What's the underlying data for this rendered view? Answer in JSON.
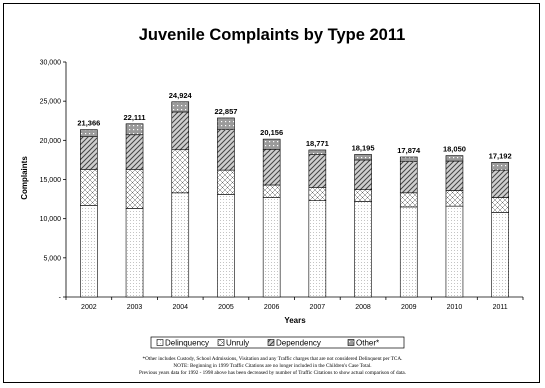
{
  "chart_data": {
    "type": "bar",
    "stacked": true,
    "title": "Juvenile Complaints by Type 2011",
    "xlabel": "Years",
    "ylabel": "Complaints",
    "ylim": [
      0,
      30000
    ],
    "yticks": [
      0,
      5000,
      10000,
      15000,
      20000,
      25000,
      30000
    ],
    "ytick_labels": [
      "-",
      "5,000",
      "10,000",
      "15,000",
      "20,000",
      "25,000",
      "30,000"
    ],
    "grid": false,
    "legend_position": "bottom",
    "categories": [
      "2002",
      "2003",
      "2004",
      "2005",
      "2006",
      "2007",
      "2008",
      "2009",
      "2010",
      "2011"
    ],
    "totals": [
      21366,
      22111,
      24924,
      22857,
      20156,
      18771,
      18195,
      17874,
      18050,
      17192
    ],
    "total_labels": [
      "21,366",
      "22,111",
      "24,924",
      "22,857",
      "20,156",
      "18,771",
      "18,195",
      "17,874",
      "18,050",
      "17,192"
    ],
    "series": [
      {
        "name": "Delinquency",
        "values": [
          11700,
          11300,
          13300,
          13100,
          12700,
          12300,
          12200,
          11500,
          11600,
          10800
        ]
      },
      {
        "name": "Unruly",
        "values": [
          4600,
          5000,
          5500,
          3100,
          1600,
          1700,
          1500,
          1800,
          2000,
          1900
        ]
      },
      {
        "name": "Dependency",
        "values": [
          4166,
          4411,
          4824,
          5157,
          4556,
          4171,
          3795,
          3974,
          3750,
          3492
        ]
      },
      {
        "name": "Other*",
        "values": [
          900,
          1400,
          1300,
          1500,
          1300,
          600,
          700,
          600,
          700,
          1000
        ]
      }
    ],
    "notes": [
      "*Other includes Custody, School Admissions, Visitation and any Traffic charges that are not considered Delinquent per TCA.",
      "NOTE: Beginning in 1999 Traffic Citations are no longer included in the Children's Case Total.",
      "Previous years data for 1992 - 1998 above has been decreased by number of Traffic Citations to show actual comparison of data."
    ]
  }
}
